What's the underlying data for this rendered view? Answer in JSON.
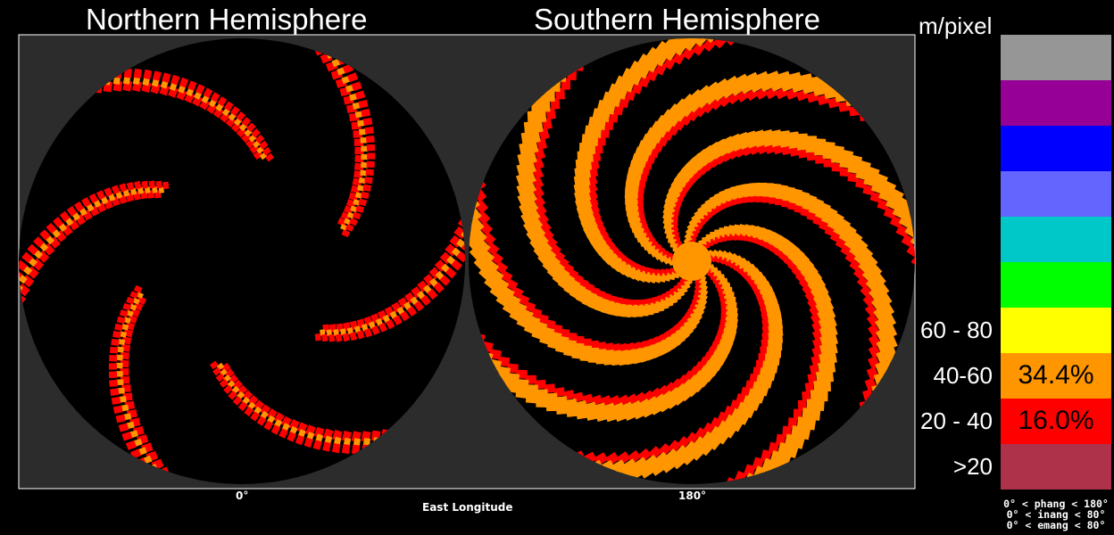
{
  "north_title": "Northern Hemisphere",
  "south_title": "Southern Hemisphere",
  "x_label": "East Longitude",
  "x_ticks": [
    "0°",
    "180°"
  ],
  "legend": {
    "unit": "m/pixel",
    "swatches": [
      {
        "color": "#969696"
      },
      {
        "color": "#960096"
      },
      {
        "color": "#0000ff"
      },
      {
        "color": "#6464ff"
      },
      {
        "color": "#00c8c8"
      },
      {
        "color": "#00ff00"
      },
      {
        "color": "#ffff00",
        "range": "60 - 80",
        "pct": ""
      },
      {
        "color": "#ff9600",
        "range": "40-60",
        "pct": "34.4%",
        "pct_color": "#000000"
      },
      {
        "color": "#ff0000",
        "range": "20 - 40",
        "pct": "16.0%",
        "pct_color": "#000000"
      },
      {
        "color": "#af324b",
        "range": ">20",
        "pct": ""
      }
    ]
  },
  "constraints": [
    "0° < phang < 180°",
    "0° < inang <  80°",
    "0° < emang <  80°"
  ],
  "chart_data": {
    "type": "heatmap",
    "title": "",
    "panels": [
      "Northern Hemisphere",
      "Southern Hemisphere"
    ],
    "xlabel": "East Longitude",
    "x_ticks": [
      "0°",
      "180°"
    ],
    "legend_title": "m/pixel",
    "bins": [
      ">20",
      "20 - 40",
      "40-60",
      "60 - 80"
    ],
    "coverage_percent": {
      "20 - 40": 16.0,
      "40-60": 34.4
    },
    "colors": {
      "20 - 40": "#ff0000",
      "40-60": "#ff9600",
      "no coverage": "#000000"
    }
  }
}
